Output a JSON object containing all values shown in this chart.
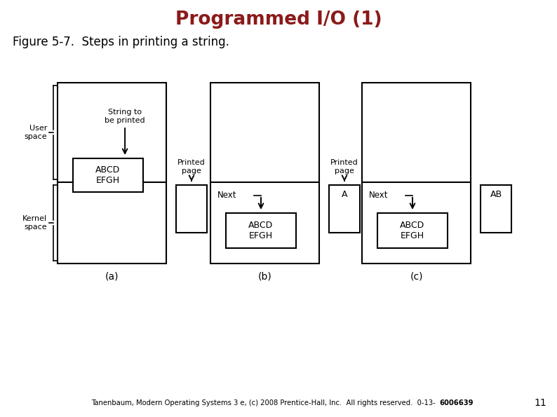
{
  "title": "Programmed I/O (1)",
  "title_color": "#8B1A1A",
  "subtitle": "Figure 5-7.  Steps in printing a string.",
  "footer": "Tanenbaum, Modern Operating Systems 3 e, (c) 2008 Prentice-Hall, Inc.  All rights reserved.  0-13-",
  "footer_bold": "6006639",
  "page_number": "11",
  "background_color": "#ffffff",
  "lc": "#000000",
  "fc": "#ffffff",
  "lw": 1.2
}
